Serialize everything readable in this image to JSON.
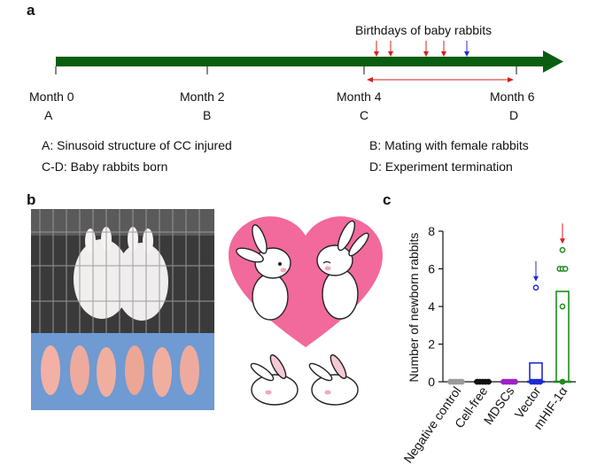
{
  "panel_a": {
    "label": "a",
    "birthdays_label": "Birthdays of baby rabbits",
    "months": [
      {
        "label": "Month 0",
        "letter": "A"
      },
      {
        "label": "Month 2",
        "letter": "B"
      },
      {
        "label": "Month 4",
        "letter": "C"
      },
      {
        "label": "Month 6",
        "letter": "D"
      }
    ],
    "legend": {
      "a": "A: Sinusoid structure of CC injured",
      "b": "B: Mating with female rabbits",
      "cd": "C-D: Baby rabbits born",
      "d": "D: Experiment termination"
    },
    "colors": {
      "arrow": "#0b5d12",
      "red": "#d62020",
      "blue": "#1c2bd6"
    }
  },
  "panel_b": {
    "label": "b",
    "photo_icons": [
      "rabbits-in-cage-photo",
      "newborn-rabbits-photo"
    ],
    "illustration_icon": "heart-with-rabbits-illustration",
    "colors": {
      "heart": "#f2699c"
    }
  },
  "panel_c": {
    "label": "c"
  },
  "chart_data": {
    "type": "bar",
    "ylabel": "Number of newborn rabbits",
    "ylim": [
      0,
      8
    ],
    "yticks": [
      0,
      2,
      4,
      6,
      8
    ],
    "categories": [
      "Negative control",
      "Cell-free",
      "MDSCs",
      "Vector",
      "mHIF-1α"
    ],
    "values": [
      0,
      0,
      0,
      1,
      4.8
    ],
    "points": [
      [
        0,
        0,
        0,
        0,
        0
      ],
      [
        0,
        0,
        0,
        0,
        0
      ],
      [
        0,
        0,
        0,
        0,
        0
      ],
      [
        0,
        0,
        0,
        0,
        5
      ],
      [
        0,
        4,
        6,
        6,
        6,
        7
      ]
    ],
    "colors": [
      "#9a9a9a",
      "#111111",
      "#a020c8",
      "#1c2bd6",
      "#1e8a1e"
    ],
    "arrows": [
      {
        "category": "Vector",
        "color": "#1c2bd6"
      },
      {
        "category": "mHIF-1α",
        "color": "#d62020"
      }
    ]
  }
}
